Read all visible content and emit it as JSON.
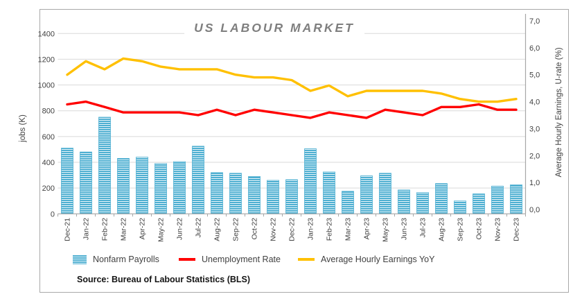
{
  "chart_meta": {
    "title": "US LABOUR MARKET",
    "source": "Source: Bureau of Labour Statistics (BLS)",
    "left_axis_label": "jobs (K)",
    "right_axis_label": "Average Hourly Earnings, U-rate (%)",
    "left_ticks": [
      "0",
      "200",
      "400",
      "600",
      "800",
      "1000",
      "1200",
      "1400"
    ],
    "right_ticks": [
      "0,0",
      "1,0",
      "2,0",
      "3,0",
      "4,0",
      "5,0",
      "6,0",
      "7,0"
    ],
    "colors": {
      "bar_fill": "#4EAFD1",
      "bar_stripe": "#E8F5FA",
      "unemployment_line": "#FF0000",
      "earnings_line": "#FFC000",
      "gridline": "#D9D9D9",
      "axis_line": "#A6A6A6",
      "tick_text": "#404040",
      "title_text": "#7F7F7F"
    }
  },
  "legend": [
    {
      "label": "Nonfarm Payrolls",
      "swatch": "bar"
    },
    {
      "label": "Unemployment Rate",
      "swatch": "line",
      "color": "#FF0000"
    },
    {
      "label": "Average Hourly Earnings YoY",
      "swatch": "line",
      "color": "#FFC000"
    }
  ],
  "chart_data": {
    "type": "combo: bar + 2 lines (dual axis)",
    "title": "US LABOUR MARKET",
    "categories": [
      "Dec-21",
      "Jan-22",
      "Feb-22",
      "Mar-22",
      "Apr-22",
      "May-22",
      "Jun-22",
      "Jul-22",
      "Aug-22",
      "Sep-22",
      "Oct-22",
      "Nov-22",
      "Dec-22",
      "Jan-23",
      "Feb-23",
      "Mar-23",
      "Apr-23",
      "May-23",
      "Jun-23",
      "Jul-23",
      "Aug-23",
      "Sep-23",
      "Oct-23",
      "Nov-23",
      "Dec-23"
    ],
    "series": [
      {
        "name": "Nonfarm Payrolls",
        "type": "bar",
        "axis": "left",
        "unit": "K jobs",
        "values": [
          510,
          480,
          750,
          430,
          440,
          390,
          405,
          525,
          320,
          315,
          290,
          260,
          265,
          505,
          325,
          175,
          295,
          315,
          185,
          165,
          235,
          100,
          155,
          215,
          225
        ]
      },
      {
        "name": "Unemployment Rate",
        "type": "line",
        "axis": "right",
        "unit": "%",
        "values": [
          3.9,
          4.0,
          3.8,
          3.6,
          3.6,
          3.6,
          3.6,
          3.5,
          3.7,
          3.5,
          3.7,
          3.6,
          3.5,
          3.4,
          3.6,
          3.5,
          3.4,
          3.7,
          3.6,
          3.5,
          3.8,
          3.8,
          3.9,
          3.7,
          3.7
        ]
      },
      {
        "name": "Average Hourly Earnings YoY",
        "type": "line",
        "axis": "right",
        "unit": "%",
        "values": [
          5.0,
          5.5,
          5.2,
          5.6,
          5.5,
          5.3,
          5.2,
          5.2,
          5.2,
          5.0,
          4.9,
          4.9,
          4.8,
          4.4,
          4.6,
          4.2,
          4.4,
          4.4,
          4.4,
          4.4,
          4.3,
          4.1,
          4.0,
          4.0,
          4.1
        ]
      }
    ],
    "left_axis": {
      "label": "jobs (K)",
      "min": 0,
      "max": 1400,
      "step": 200
    },
    "right_axis": {
      "label": "Average Hourly Earnings, U-rate (%)",
      "min": 0.0,
      "max": 7.0,
      "step": 1.0
    },
    "grid": true,
    "legend_position": "bottom"
  }
}
